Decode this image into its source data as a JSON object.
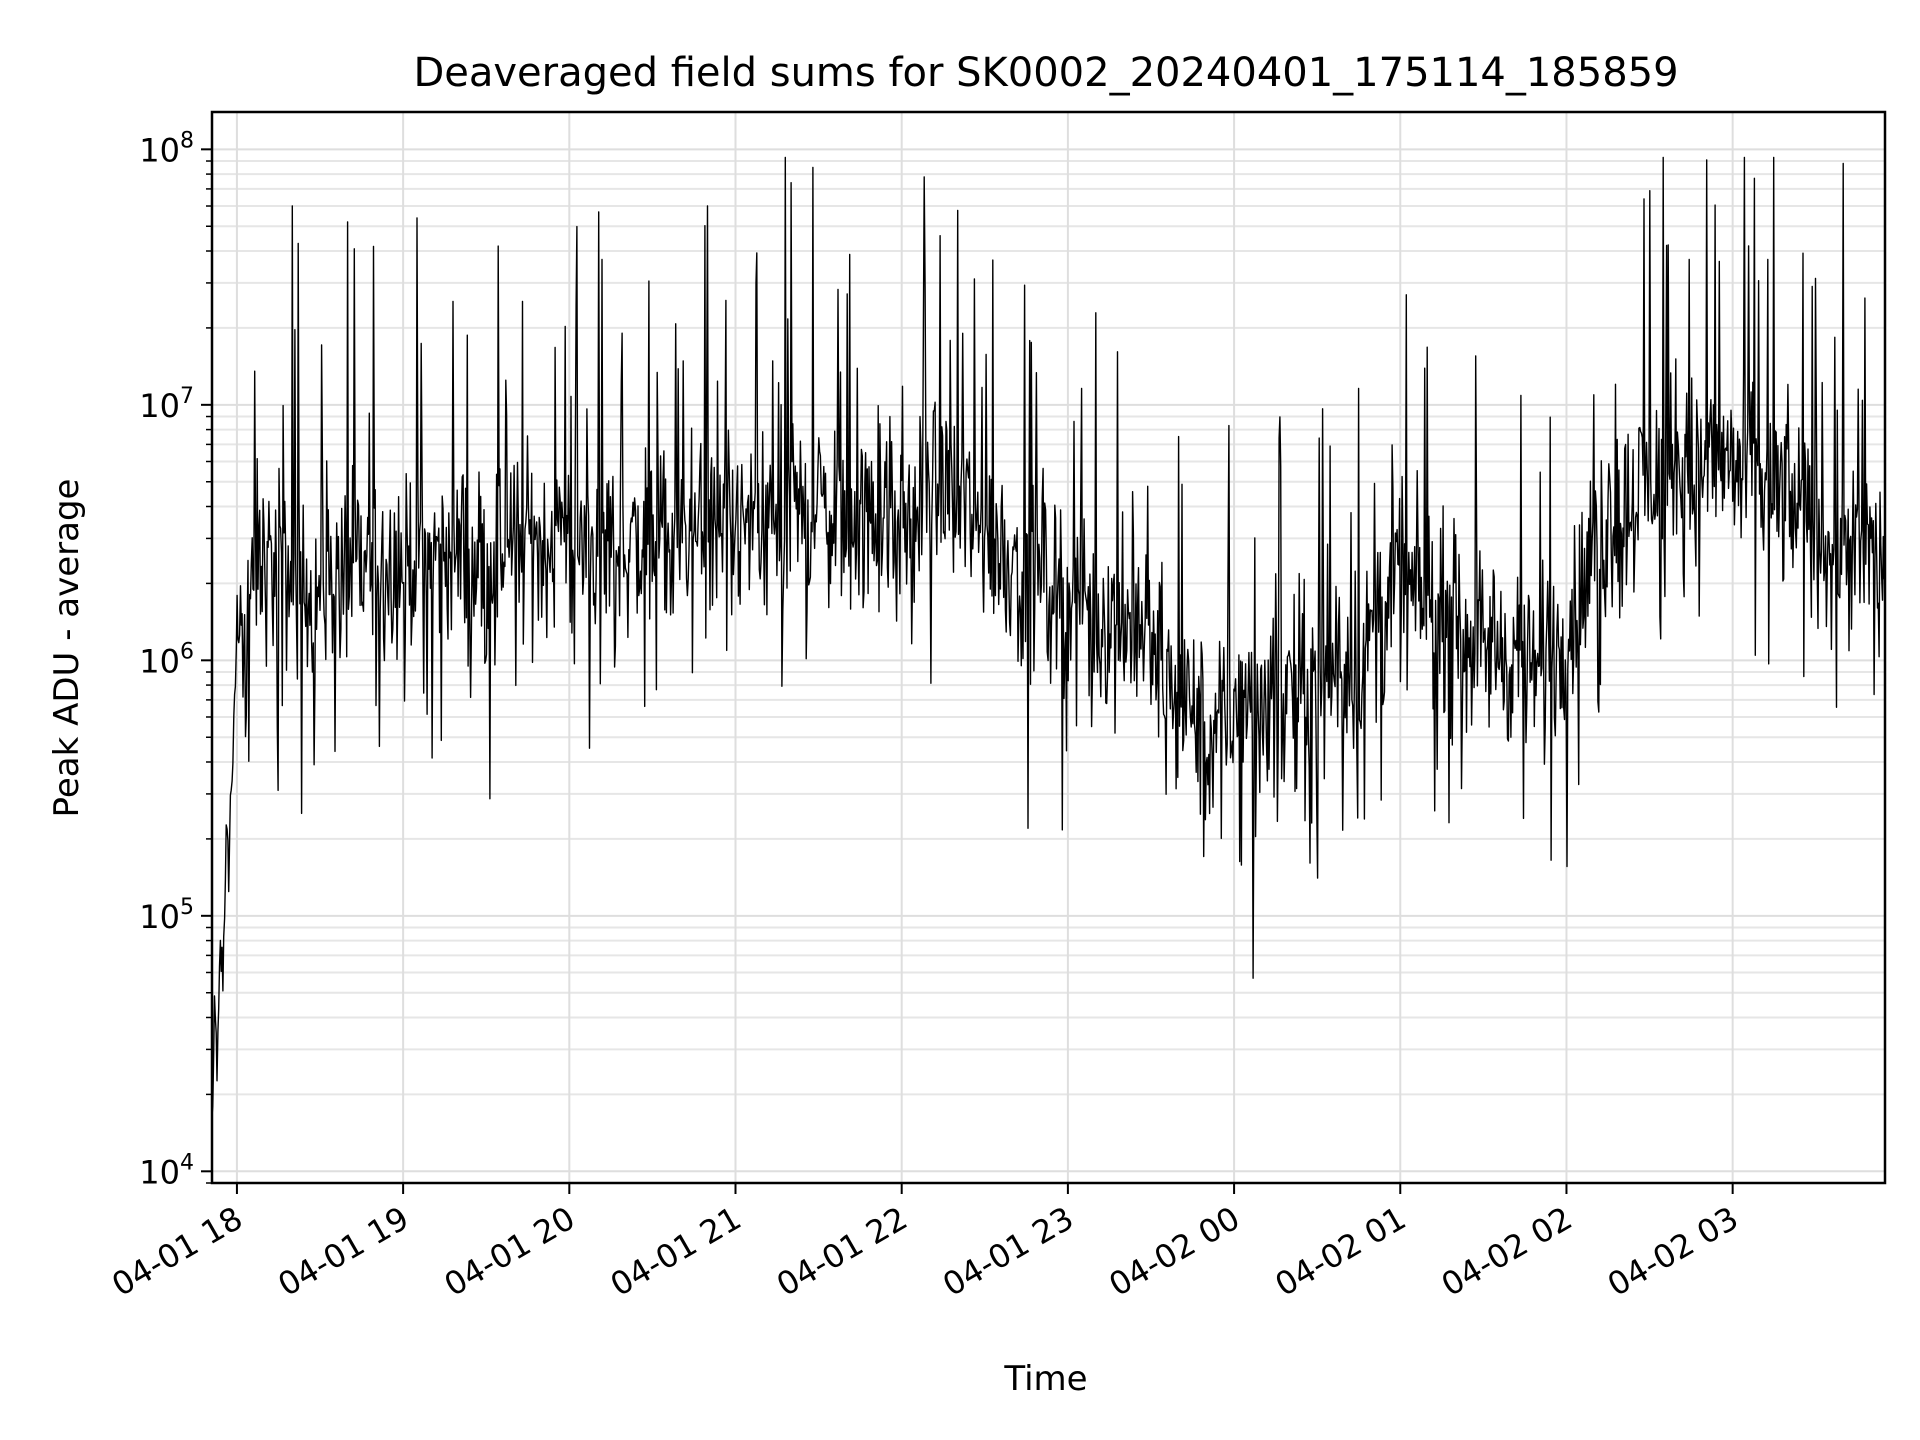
{
  "chart_data": {
    "type": "line",
    "title": "Deaveraged field sums for SK0002_20240401_175114_185859",
    "xlabel": "Time",
    "ylabel": "Peak ADU - average",
    "yscale": "log",
    "ylim": [
      9000,
      140000000
    ],
    "xlim": [
      "2024-04-01 17:51",
      "2024-04-02 03:55"
    ],
    "grid": true,
    "grid_minor_y": true,
    "line_color": "#000000",
    "x_ticks": [
      {
        "t": "2024-04-01 18:00",
        "label": "04-01 18"
      },
      {
        "t": "2024-04-01 19:00",
        "label": "04-01 19"
      },
      {
        "t": "2024-04-01 20:00",
        "label": "04-01 20"
      },
      {
        "t": "2024-04-01 21:00",
        "label": "04-01 21"
      },
      {
        "t": "2024-04-01 22:00",
        "label": "04-01 22"
      },
      {
        "t": "2024-04-01 23:00",
        "label": "04-01 23"
      },
      {
        "t": "2024-04-02 00:00",
        "label": "04-02 00"
      },
      {
        "t": "2024-04-02 01:00",
        "label": "04-02 01"
      },
      {
        "t": "2024-04-02 02:00",
        "label": "04-02 02"
      },
      {
        "t": "2024-04-02 03:00",
        "label": "04-02 03"
      }
    ],
    "y_ticks": [
      {
        "value": 10000,
        "base": "10",
        "exp": "4"
      },
      {
        "value": 100000,
        "base": "10",
        "exp": "5"
      },
      {
        "value": 1000000,
        "base": "10",
        "exp": "6"
      },
      {
        "value": 10000000,
        "base": "10",
        "exp": "7"
      },
      {
        "value": 100000000,
        "base": "10",
        "exp": "8"
      }
    ],
    "series": [
      {
        "points": [
          [
            "2024-04-01 17:51",
            15000
          ],
          [
            "2024-04-01 17:52",
            40000
          ],
          [
            "2024-04-01 17:53",
            25000
          ],
          [
            "2024-04-01 17:54",
            70000
          ],
          [
            "2024-04-01 17:55",
            60000
          ],
          [
            "2024-04-01 17:56",
            200000
          ],
          [
            "2024-04-01 17:57",
            150000
          ],
          [
            "2024-04-01 17:58",
            350000
          ],
          [
            "2024-04-01 17:59",
            500000
          ],
          [
            "2024-04-01 18:00",
            1500000
          ],
          [
            "2024-04-01 18:03",
            1200000
          ],
          [
            "2024-04-01 18:07",
            2500000
          ],
          [
            "2024-04-01 18:15",
            2200000
          ],
          [
            "2024-04-01 18:30",
            1800000
          ],
          [
            "2024-04-01 18:45",
            2300000
          ],
          [
            "2024-04-01 19:00",
            2500000
          ],
          [
            "2024-04-01 19:30",
            2600000
          ],
          [
            "2024-04-01 20:00",
            3000000
          ],
          [
            "2024-04-01 20:30",
            2800000
          ],
          [
            "2024-04-01 21:00",
            3200000
          ],
          [
            "2024-04-01 21:30",
            4000000
          ],
          [
            "2024-04-01 22:00",
            3000000
          ],
          [
            "2024-04-01 22:15",
            5000000
          ],
          [
            "2024-04-01 22:30",
            3000000
          ],
          [
            "2024-04-01 23:00",
            1800000
          ],
          [
            "2024-04-01 23:30",
            1200000
          ],
          [
            "2024-04-01 23:50",
            500000
          ],
          [
            "2024-04-02 00:00",
            600000
          ],
          [
            "2024-04-02 00:20",
            800000
          ],
          [
            "2024-04-02 00:45",
            1000000
          ],
          [
            "2024-04-02 01:00",
            2000000
          ],
          [
            "2024-04-02 01:30",
            1200000
          ],
          [
            "2024-04-02 01:50",
            900000
          ],
          [
            "2024-04-02 02:00",
            1300000
          ],
          [
            "2024-04-02 02:15",
            3500000
          ],
          [
            "2024-04-02 02:30",
            5000000
          ],
          [
            "2024-04-02 03:00",
            6000000
          ],
          [
            "2024-04-02 03:30",
            3500000
          ],
          [
            "2024-04-02 03:55",
            2500000
          ]
        ],
        "noise": {
          "samples": 2000,
          "log10_spread": 0.32,
          "spikes": [
            {
              "t": "2024-04-01 18:20",
              "value": 60000000
            },
            {
              "t": "2024-04-01 18:40",
              "value": 52000000
            },
            {
              "t": "2024-04-01 20:50",
              "value": 60000000
            },
            {
              "t": "2024-04-01 21:28",
              "value": 85000000
            },
            {
              "t": "2024-04-01 22:08",
              "value": 78000000
            },
            {
              "t": "2024-04-02 00:07",
              "value": 57000
            },
            {
              "t": "2024-04-02 02:35",
              "value": 93000000
            },
            {
              "t": "2024-04-02 03:08",
              "value": 77000000
            },
            {
              "t": "2024-04-02 03:40",
              "value": 88000000
            }
          ]
        }
      }
    ]
  }
}
